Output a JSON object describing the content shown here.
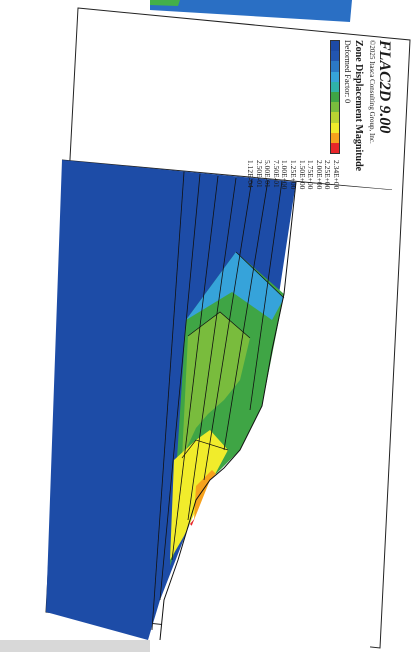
{
  "legend": {
    "app_title": "FLAC2D 9.00",
    "copyright": "©2025 Itasca Consulting Group, Inc.",
    "plot_title": "Zone Displacement Magnitude",
    "deformed_factor": "Deformed Factor: 0",
    "values": [
      "2.34E+00",
      "2.25E+00",
      "2.00E+00",
      "1.75E+00",
      "1.50E+00",
      "1.25E+00",
      "1.00E+00",
      "7.50E-01",
      "5.00E-01",
      "2.50E-01",
      "1.12E-04"
    ],
    "colors": [
      "#e8262a",
      "#f6a21d",
      "#f1ec2b",
      "#b9d332",
      "#79bc3d",
      "#3fa545",
      "#2fb2a8",
      "#36a3da",
      "#2b78c6",
      "#2255b0",
      "#1d4aa6"
    ]
  },
  "model_colors": {
    "background_zone": "#1d4ca7",
    "strip_top": "#2a6fc4"
  }
}
